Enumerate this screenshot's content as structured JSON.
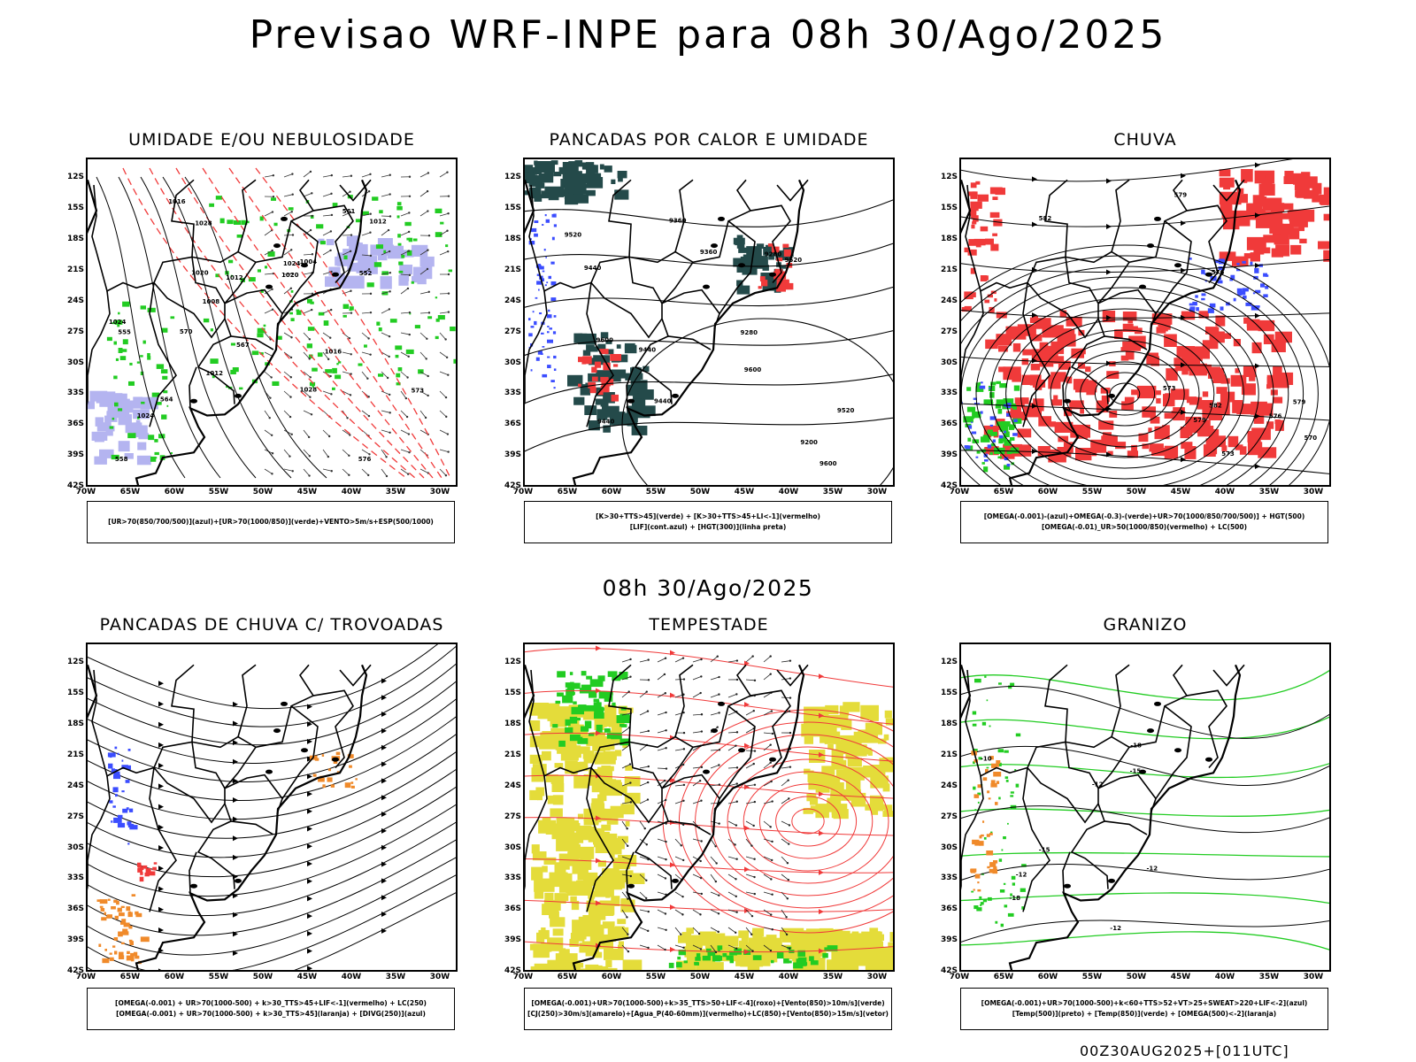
{
  "main_title": "Previsao WRF-INPE  para 08h 30/Ago/2025",
  "mid_title": "08h 30/Ago/2025",
  "footer": "00Z30AUG2025+[011UTC]",
  "lat_ticks": [
    "12S",
    "15S",
    "18S",
    "21S",
    "24S",
    "27S",
    "30S",
    "33S",
    "36S",
    "39S",
    "42S"
  ],
  "lon_ticks": [
    "70W",
    "65W",
    "60W",
    "55W",
    "50W",
    "45W",
    "40W",
    "35W",
    "30W"
  ],
  "colors": {
    "blue": "#3b4dff",
    "green": "#22cc22",
    "red": "#f03a3a",
    "orange": "#f08a2a",
    "yellow": "#e4dc3a",
    "teal": "#244a4a",
    "lavender": "#b4b4f0",
    "black": "#000000"
  },
  "panels": [
    {
      "id": "umidade",
      "title": "UMIDADE E/OU NEBULOSIDADE",
      "legend": [
        "[UR>70(850/700/500)](azul)+[UR>70(1000/850)](verde)+VENTO>5m/s+ESP(500/1000)"
      ],
      "contour_labels": [
        "1012",
        "1012",
        "1016",
        "1020",
        "1024",
        "1024",
        "1028",
        "1004",
        "1008",
        "1012",
        "1016",
        "1020",
        "1024",
        "570",
        "552",
        "555",
        "558",
        "564",
        "561",
        "573",
        "576",
        "567",
        "1028"
      ]
    },
    {
      "id": "pancadas-calor",
      "title": "PANCADAS POR CALOR E UMIDADE",
      "legend": [
        "[K>30+TTS>45](verde) + [K>30+TTS>45+LI<-1](vermelho)",
        "[LIF](cont.azul) + [HGT(300)](linha preta)"
      ],
      "contour_labels": [
        "9600",
        "9600",
        "9600",
        "9520",
        "9520",
        "9440",
        "9440",
        "9440",
        "9520",
        "9360",
        "9280",
        "9200",
        "9440",
        "9360",
        "9280"
      ]
    },
    {
      "id": "chuva",
      "title": "CHUVA",
      "legend": [
        "[OMEGA(-0.001)-(azul)+OMEGA(-0.3)-(verde)+UR>70(1000/850/700/500)] + HGT(500)",
        "[OMEGA(-0.01)_UR>50(1000/850)(vermelho) + LC(500)"
      ],
      "contour_labels": [
        "576",
        "579",
        "573",
        "579",
        "582",
        "576",
        "573",
        "570",
        "582",
        "579"
      ]
    },
    {
      "id": "trovoadas",
      "title": "PANCADAS DE CHUVA C/ TROVOADAS",
      "legend": [
        "[OMEGA(-0.001) + UR>70(1000-500) + k>30_TTS>45+LIF<-1](vermelho) + LC(250)",
        "[OMEGA(-0.001) + UR>70(1000-500) + k>30_TTS>45](laranja) + [DIVG(250)](azul)"
      ],
      "contour_labels": []
    },
    {
      "id": "tempestade",
      "title": "TEMPESTADE",
      "legend": [
        "[OMEGA(-0.001)+UR>70(1000-500)+k>35_TTS>50+LIF<-4](roxo)+[Vento(850)>10m/s](verde)",
        "[CJ(250)>30m/s](amarelo)+[Agua_P(40-60mm)](vermelho)+LC(850)+[Vento(850)>15m/s](vetor)"
      ],
      "contour_labels": []
    },
    {
      "id": "granizo",
      "title": "GRANIZO",
      "legend": [
        "[OMEGA(-0.001)+UR>70(1000-500)+k<60+TTS>52+VT>25+SWEAT>220+LIF<-2](azul)",
        "[Temp(500)](preto) + [Temp(850)](verde) + [OMEGA(500)<-2](laranja)"
      ],
      "contour_labels": [
        "-10",
        "-12",
        "-12",
        "-15",
        "-12",
        "-15",
        "-18",
        "-18",
        "-12"
      ]
    }
  ]
}
